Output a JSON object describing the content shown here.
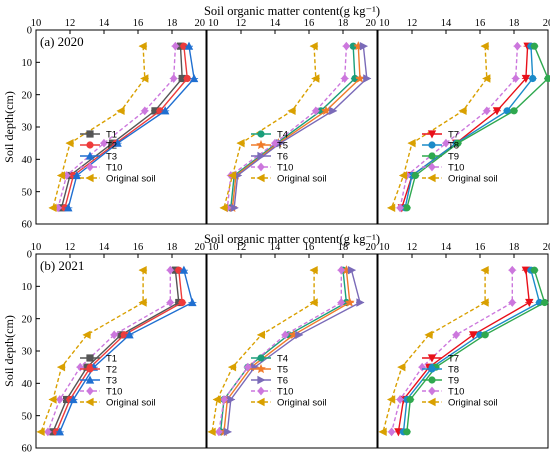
{
  "chart_data": [
    {
      "type": "line",
      "title": "Soil organic matter content(g kg⁻¹)",
      "panel_label": "(a) 2020",
      "ylabel": "Soil depth(cm)",
      "xlim": [
        10,
        20
      ],
      "ylim": [
        0,
        60
      ],
      "x_ticks": [
        10,
        12,
        14,
        16,
        18,
        20
      ],
      "y_ticks": [
        0,
        10,
        20,
        30,
        40,
        50,
        60
      ],
      "depths": [
        5,
        15,
        25,
        35,
        45,
        55
      ],
      "subplots": [
        {
          "legend": [
            "T1",
            "T2",
            "T3",
            "T10",
            "Original soil"
          ],
          "series": [
            {
              "name": "T1",
              "color": "#555555",
              "marker": "square",
              "dash": false,
              "values": [
                18.5,
                18.6,
                17.0,
                14.5,
                12.0,
                11.5
              ]
            },
            {
              "name": "T2",
              "color": "#ee3b3b",
              "marker": "circle",
              "dash": false,
              "values": [
                18.7,
                18.9,
                17.3,
                14.7,
                12.2,
                11.7
              ]
            },
            {
              "name": "T3",
              "color": "#1f6fd1",
              "marker": "triangle",
              "dash": false,
              "values": [
                19.0,
                19.3,
                17.6,
                14.8,
                12.4,
                11.9
              ]
            },
            {
              "name": "T10",
              "color": "#cc77dd",
              "marker": "diamond",
              "dash": true,
              "values": [
                18.2,
                18.1,
                16.4,
                14.0,
                11.8,
                11.3
              ]
            },
            {
              "name": "Original soil",
              "color": "#d9a000",
              "marker": "lefttri",
              "dash": true,
              "values": [
                16.3,
                16.4,
                15.0,
                12.0,
                11.5,
                11.0
              ]
            }
          ]
        },
        {
          "legend": [
            "T4",
            "T5",
            "T6",
            "T10",
            "Original soil"
          ],
          "series": [
            {
              "name": "T4",
              "color": "#1a9e7a",
              "marker": "circle",
              "dash": false,
              "values": [
                18.6,
                18.7,
                16.7,
                14.1,
                11.6,
                11.4
              ]
            },
            {
              "name": "T5",
              "color": "#f07b2a",
              "marker": "star",
              "dash": false,
              "values": [
                18.9,
                19.0,
                17.0,
                14.2,
                11.7,
                11.5
              ]
            },
            {
              "name": "T6",
              "color": "#7a6ab8",
              "marker": "righttri",
              "dash": false,
              "values": [
                19.2,
                19.4,
                17.4,
                14.3,
                11.8,
                11.6
              ]
            },
            {
              "name": "T10",
              "color": "#cc77dd",
              "marker": "diamond",
              "dash": true,
              "values": [
                18.2,
                18.1,
                16.4,
                14.0,
                11.4,
                11.2
              ]
            },
            {
              "name": "Original soil",
              "color": "#d9a000",
              "marker": "lefttri",
              "dash": true,
              "values": [
                16.3,
                16.4,
                15.0,
                12.0,
                11.5,
                11.0
              ]
            }
          ]
        },
        {
          "legend": [
            "T7",
            "T8",
            "T9",
            "T10",
            "Original soil"
          ],
          "series": [
            {
              "name": "T7",
              "color": "#e8101a",
              "marker": "downtri",
              "dash": false,
              "values": [
                18.8,
                18.7,
                17.0,
                14.6,
                12.0,
                11.4
              ]
            },
            {
              "name": "T8",
              "color": "#1b8bc9",
              "marker": "circle",
              "dash": false,
              "values": [
                19.0,
                19.1,
                17.6,
                14.6,
                12.0,
                11.6
              ]
            },
            {
              "name": "T9",
              "color": "#2fa84f",
              "marker": "circle",
              "dash": false,
              "values": [
                19.2,
                20.0,
                18.0,
                14.7,
                12.2,
                11.7
              ]
            },
            {
              "name": "T10",
              "color": "#cc77dd",
              "marker": "diamond",
              "dash": true,
              "values": [
                18.2,
                18.1,
                16.4,
                14.0,
                11.7,
                11.3
              ]
            },
            {
              "name": "Original soil",
              "color": "#d9a000",
              "marker": "lefttri",
              "dash": true,
              "values": [
                16.3,
                16.4,
                15.0,
                12.0,
                11.5,
                10.8
              ]
            }
          ]
        }
      ]
    },
    {
      "type": "line",
      "title": "Soil organic matter content(g kg⁻¹)",
      "panel_label": "(b) 2021",
      "ylabel": "Soil depth(cm)",
      "xlim": [
        10,
        20
      ],
      "ylim": [
        0,
        60
      ],
      "x_ticks": [
        10,
        12,
        14,
        16,
        18,
        20
      ],
      "y_ticks": [
        0,
        10,
        20,
        30,
        40,
        50,
        60
      ],
      "depths": [
        5,
        15,
        25,
        35,
        45,
        55
      ],
      "subplots": [
        {
          "legend": [
            "T1",
            "T2",
            "T3",
            "T10",
            "Original soil"
          ],
          "series": [
            {
              "name": "T1",
              "color": "#555555",
              "marker": "square",
              "dash": false,
              "values": [
                18.2,
                18.4,
                15.0,
                13.0,
                11.8,
                11.0
              ]
            },
            {
              "name": "T2",
              "color": "#ee3b3b",
              "marker": "circle",
              "dash": false,
              "values": [
                18.4,
                18.6,
                15.2,
                13.2,
                12.0,
                11.2
              ]
            },
            {
              "name": "T3",
              "color": "#1f6fd1",
              "marker": "triangle",
              "dash": false,
              "values": [
                18.7,
                19.2,
                15.5,
                13.4,
                12.2,
                11.4
              ]
            },
            {
              "name": "T10",
              "color": "#cc77dd",
              "marker": "diamond",
              "dash": true,
              "values": [
                17.9,
                17.9,
                14.6,
                12.6,
                11.4,
                10.7
              ]
            },
            {
              "name": "Original soil",
              "color": "#d9a000",
              "marker": "lefttri",
              "dash": true,
              "values": [
                16.3,
                16.3,
                13.0,
                11.5,
                11.0,
                10.3
              ]
            }
          ]
        },
        {
          "legend": [
            "T4",
            "T5",
            "T6",
            "T10",
            "Original soil"
          ],
          "series": [
            {
              "name": "T4",
              "color": "#1a9e7a",
              "marker": "circle",
              "dash": false,
              "values": [
                18.0,
                18.2,
                14.8,
                12.4,
                11.0,
                10.8
              ]
            },
            {
              "name": "T5",
              "color": "#f07b2a",
              "marker": "star",
              "dash": false,
              "values": [
                18.2,
                18.4,
                15.1,
                12.6,
                11.2,
                11.0
              ]
            },
            {
              "name": "T6",
              "color": "#7a6ab8",
              "marker": "righttri",
              "dash": false,
              "values": [
                18.5,
                19.0,
                15.4,
                12.8,
                11.4,
                11.2
              ]
            },
            {
              "name": "T10",
              "color": "#cc77dd",
              "marker": "diamond",
              "dash": true,
              "values": [
                17.9,
                17.9,
                14.6,
                12.4,
                11.0,
                10.7
              ]
            },
            {
              "name": "Original soil",
              "color": "#d9a000",
              "marker": "lefttri",
              "dash": true,
              "values": [
                16.3,
                16.3,
                13.2,
                11.5,
                10.6,
                10.3
              ]
            }
          ]
        },
        {
          "legend": [
            "T7",
            "T8",
            "T9",
            "T10",
            "Original soil"
          ],
          "series": [
            {
              "name": "T7",
              "color": "#e8101a",
              "marker": "downtri",
              "dash": false,
              "values": [
                18.7,
                18.9,
                15.6,
                13.0,
                11.5,
                11.2
              ]
            },
            {
              "name": "T8",
              "color": "#1b8bc9",
              "marker": "circle",
              "dash": false,
              "values": [
                19.0,
                19.5,
                16.0,
                13.2,
                11.7,
                11.5
              ]
            },
            {
              "name": "T9",
              "color": "#2fa84f",
              "marker": "circle",
              "dash": false,
              "values": [
                19.2,
                19.8,
                16.3,
                13.4,
                11.9,
                11.7
              ]
            },
            {
              "name": "T10",
              "color": "#cc77dd",
              "marker": "diamond",
              "dash": true,
              "values": [
                17.9,
                17.9,
                14.6,
                12.6,
                11.3,
                10.8
              ]
            },
            {
              "name": "Original soil",
              "color": "#d9a000",
              "marker": "lefttri",
              "dash": true,
              "values": [
                16.3,
                16.3,
                13.0,
                11.4,
                10.8,
                10.3
              ]
            }
          ]
        }
      ]
    }
  ]
}
